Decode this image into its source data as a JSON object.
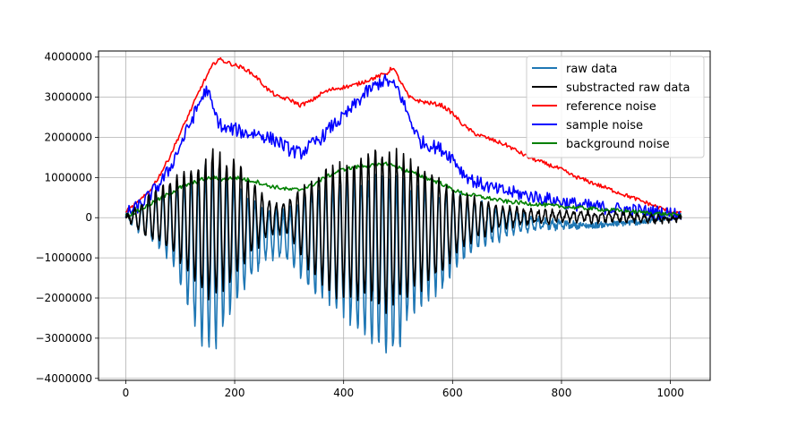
{
  "chart_data": {
    "type": "line",
    "title": "",
    "xlabel": "",
    "ylabel": "",
    "xlim": [
      -50,
      1073
    ],
    "ylim": [
      -4050000,
      4150000
    ],
    "xticks": [
      0,
      200,
      400,
      600,
      800,
      1000
    ],
    "yticks": [
      -4000000,
      -3000000,
      -2000000,
      -1000000,
      0,
      1000000,
      2000000,
      3000000,
      4000000
    ],
    "xtick_labels": [
      "0",
      "200",
      "400",
      "600",
      "800",
      "1000"
    ],
    "ytick_labels": [
      "−4000000",
      "−3000000",
      "−2000000",
      "−1000000",
      "0",
      "1000000",
      "2000000",
      "3000000",
      "4000000"
    ],
    "grid": true,
    "legend_position": "top-right",
    "series": [
      {
        "name": "raw data",
        "color": "#1f77b4",
        "kind": "oscillating",
        "envelope_x": [
          0,
          20,
          50,
          80,
          100,
          120,
          140,
          160,
          180,
          200,
          220,
          240,
          260,
          280,
          300,
          320,
          340,
          360,
          380,
          400,
          420,
          440,
          460,
          480,
          500,
          520,
          540,
          560,
          580,
          600,
          640,
          680,
          720,
          760,
          800,
          850,
          900,
          950,
          1000,
          1020
        ],
        "upper": [
          150000,
          300000,
          550000,
          850000,
          1000000,
          1200000,
          1350000,
          1500000,
          1300000,
          1100000,
          800000,
          500000,
          300000,
          200000,
          250000,
          500000,
          800000,
          900000,
          1000000,
          1100000,
          1200000,
          1250000,
          1300000,
          1250000,
          1100000,
          1000000,
          950000,
          900000,
          850000,
          700000,
          500000,
          300000,
          150000,
          0,
          -100000,
          -200000,
          -150000,
          -100000,
          0,
          50000
        ],
        "lower": [
          -100000,
          -300000,
          -700000,
          -1100000,
          -1800000,
          -2600000,
          -3300000,
          -3500000,
          -2900000,
          -2400000,
          -1800000,
          -1400000,
          -1100000,
          -1000000,
          -1100000,
          -1500000,
          -2000000,
          -2100000,
          -2300000,
          -2500000,
          -3000000,
          -3200000,
          -3400000,
          -3600000,
          -3500000,
          -2600000,
          -2300000,
          -2100000,
          -1900000,
          -1400000,
          -900000,
          -600000,
          -400000,
          -300000,
          -250000,
          -200000,
          -150000,
          -100000,
          0,
          50000
        ],
        "period": 13,
        "phase": 0.0,
        "jitter": 150000
      },
      {
        "name": "substracted raw data",
        "color": "#000000",
        "kind": "oscillating",
        "envelope_x": [
          0,
          20,
          50,
          80,
          100,
          120,
          140,
          160,
          180,
          200,
          220,
          240,
          260,
          280,
          300,
          320,
          340,
          360,
          380,
          400,
          420,
          440,
          460,
          480,
          500,
          520,
          540,
          560,
          580,
          600,
          640,
          680,
          720,
          760,
          800,
          850,
          900,
          950,
          1000,
          1020
        ],
        "upper": [
          50000,
          300000,
          700000,
          1000000,
          1200000,
          1400000,
          1600000,
          1800000,
          1700000,
          1500000,
          1200000,
          800000,
          500000,
          400000,
          500000,
          800000,
          1100000,
          1300000,
          1400000,
          1500000,
          1600000,
          1800000,
          1900000,
          1900000,
          1800000,
          1600000,
          1400000,
          1200000,
          1000000,
          800000,
          500000,
          350000,
          250000,
          200000,
          180000,
          150000,
          120000,
          100000,
          50000,
          20000
        ],
        "lower": [
          -50000,
          -300000,
          -600000,
          -900000,
          -1200000,
          -1600000,
          -2000000,
          -2200000,
          -1900000,
          -1600000,
          -1200000,
          -800000,
          -500000,
          -400000,
          -500000,
          -1000000,
          -1500000,
          -1800000,
          -2000000,
          -2100000,
          -2200000,
          -2300000,
          -2400000,
          -2500000,
          -2400000,
          -2200000,
          -1900000,
          -1700000,
          -1500000,
          -1100000,
          -600000,
          -300000,
          -200000,
          -150000,
          -100000,
          -100000,
          -100000,
          -100000,
          -100000,
          -50000
        ],
        "period": 13,
        "phase": 0.0,
        "jitter": 120000
      },
      {
        "name": "reference noise",
        "color": "#ff0000",
        "kind": "smooth",
        "x": [
          0,
          20,
          40,
          60,
          80,
          100,
          120,
          140,
          160,
          170,
          180,
          200,
          220,
          240,
          260,
          280,
          300,
          320,
          340,
          360,
          380,
          400,
          420,
          440,
          460,
          480,
          490,
          500,
          520,
          540,
          560,
          580,
          600,
          620,
          640,
          660,
          680,
          700,
          720,
          740,
          760,
          780,
          800,
          820,
          840,
          860,
          880,
          900,
          920,
          940,
          960,
          980,
          1000,
          1020
        ],
        "y": [
          150000,
          350000,
          600000,
          1000000,
          1500000,
          2100000,
          2700000,
          3300000,
          3800000,
          3950000,
          3900000,
          3800000,
          3700000,
          3500000,
          3200000,
          3000000,
          2950000,
          2800000,
          2900000,
          3100000,
          3200000,
          3250000,
          3300000,
          3400000,
          3500000,
          3600000,
          3750000,
          3500000,
          3000000,
          2900000,
          2850000,
          2800000,
          2600000,
          2300000,
          2100000,
          2000000,
          1900000,
          1800000,
          1650000,
          1500000,
          1400000,
          1300000,
          1200000,
          1050000,
          950000,
          850000,
          750000,
          650000,
          550000,
          450000,
          350000,
          250000,
          150000,
          100000
        ],
        "jitter": 50000
      },
      {
        "name": "sample noise",
        "color": "#0000ff",
        "kind": "smooth",
        "x": [
          0,
          20,
          40,
          60,
          80,
          100,
          120,
          140,
          150,
          160,
          170,
          180,
          200,
          220,
          240,
          260,
          280,
          300,
          320,
          340,
          360,
          380,
          400,
          420,
          440,
          460,
          470,
          480,
          500,
          520,
          540,
          560,
          580,
          600,
          620,
          640,
          660,
          680,
          700,
          720,
          740,
          760,
          780,
          800,
          820,
          840,
          860,
          880,
          900,
          920,
          940,
          960,
          980,
          1000,
          1020
        ],
        "y": [
          100000,
          250000,
          500000,
          800000,
          1200000,
          1800000,
          2400000,
          3000000,
          3200000,
          2700000,
          2400000,
          2200000,
          2200000,
          2100000,
          2100000,
          2000000,
          1900000,
          1700000,
          1600000,
          1800000,
          2000000,
          2300000,
          2500000,
          2800000,
          3100000,
          3300000,
          3400000,
          3400000,
          3200000,
          2500000,
          1900000,
          1800000,
          1700000,
          1500000,
          1100000,
          900000,
          800000,
          700000,
          650000,
          600000,
          550000,
          500000,
          450000,
          400000,
          350000,
          300000,
          280000,
          250000,
          220000,
          200000,
          180000,
          150000,
          130000,
          100000,
          100000
        ],
        "jitter": 170000
      },
      {
        "name": "background noise",
        "color": "#008000",
        "kind": "smooth",
        "x": [
          0,
          20,
          40,
          60,
          80,
          100,
          120,
          140,
          160,
          180,
          200,
          220,
          240,
          260,
          280,
          300,
          320,
          340,
          360,
          380,
          400,
          420,
          440,
          460,
          480,
          500,
          520,
          540,
          560,
          580,
          600,
          620,
          640,
          660,
          680,
          700,
          720,
          740,
          760,
          780,
          800,
          820,
          840,
          860,
          880,
          900,
          920,
          940,
          960,
          980,
          1000,
          1020
        ],
        "y": [
          50000,
          150000,
          300000,
          450000,
          600000,
          750000,
          850000,
          950000,
          1000000,
          950000,
          1000000,
          950000,
          900000,
          800000,
          750000,
          700000,
          700000,
          800000,
          950000,
          1100000,
          1200000,
          1250000,
          1300000,
          1300000,
          1350000,
          1250000,
          1150000,
          1050000,
          950000,
          850000,
          700000,
          600000,
          550000,
          500000,
          450000,
          400000,
          380000,
          350000,
          330000,
          300000,
          280000,
          260000,
          240000,
          220000,
          200000,
          180000,
          160000,
          140000,
          120000,
          100000,
          80000,
          60000
        ],
        "jitter": 50000
      }
    ]
  }
}
